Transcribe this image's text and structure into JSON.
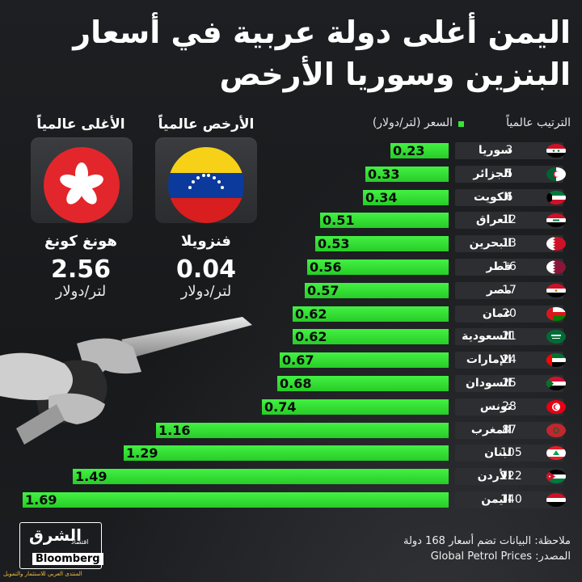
{
  "title": {
    "line1": "اليمن أغلى دولة عربية في أسعار",
    "line2": "البنزين وسوريا الأرخص"
  },
  "cards": {
    "cheapest": {
      "label": "الأرخص عالمياً",
      "country": "فنزويلا",
      "price": "0.04",
      "unit": "لتر/دولار"
    },
    "priciest": {
      "label": "الأغلى عالمياً",
      "country": "هونغ كونغ",
      "price": "2.56",
      "unit": "لتر/دولار"
    }
  },
  "columns": {
    "rank": "الترتيب عالمياً",
    "price": "السعر (لتر/دولار)"
  },
  "chart_data": {
    "type": "bar",
    "categories": [
      "سوريا",
      "الجزائر",
      "الكويت",
      "العراق",
      "البحرين",
      "قطر",
      "مصر",
      "عمان",
      "السعودية",
      "الإمارات",
      "السودان",
      "تونس",
      "المغرب",
      "لبنان",
      "الأردن",
      "اليمن"
    ],
    "ranks": [
      3,
      5,
      6,
      12,
      13,
      16,
      17,
      20,
      21,
      24,
      25,
      28,
      87,
      105,
      122,
      140
    ],
    "values": [
      0.23,
      0.33,
      0.34,
      0.51,
      0.53,
      0.56,
      0.57,
      0.62,
      0.62,
      0.67,
      0.68,
      0.74,
      1.16,
      1.29,
      1.49,
      1.69
    ],
    "bar_color": "#36e636"
  },
  "flags": [
    "syria-flag",
    "algeria-flag",
    "kuwait-flag",
    "iraq-flag",
    "bahrain-flag",
    "qatar-flag",
    "egypt-flag",
    "oman-flag",
    "saudi-flag",
    "uae-flag",
    "sudan-flag",
    "tunisia-flag",
    "morocco-flag",
    "lebanon-flag",
    "jordan-flag",
    "yemen-flag"
  ],
  "footer": {
    "note": "ملاحظة: البيانات تضم أسعار 168 دولة",
    "source": "المصدر: Global Petrol Prices"
  },
  "logo": {
    "arabic": "الشرق",
    "sub": "اقتصاد",
    "brand": "Bloomberg"
  },
  "watermark": "المنتدى العربي للاستثمار والتمويل"
}
